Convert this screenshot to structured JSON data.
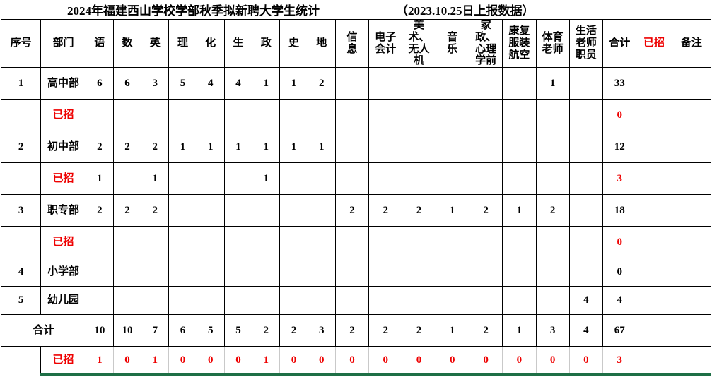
{
  "title": {
    "main": "2024年福建西山学校学部秋季拟新聘大学生统计",
    "date_note": "（2023.10.25日上报数据）"
  },
  "colors": {
    "text": "#000000",
    "red": "#ee0000",
    "grid": "#000000",
    "grid_light": "#c9c9c9",
    "bottom_line_green": "#1e6f46",
    "background": "#ffffff"
  },
  "table": {
    "columns": [
      {
        "label": "序号"
      },
      {
        "label": "部门"
      },
      {
        "label": "语"
      },
      {
        "label": "数"
      },
      {
        "label": "英"
      },
      {
        "label": "理"
      },
      {
        "label": "化"
      },
      {
        "label": "生"
      },
      {
        "label": "政"
      },
      {
        "label": "史"
      },
      {
        "label": "地"
      },
      {
        "label": "信息"
      },
      {
        "label": "电子会计"
      },
      {
        "label": "美术、无人机"
      },
      {
        "label": "音乐"
      },
      {
        "label": "家政、心理学前"
      },
      {
        "label": "康复服装航空"
      },
      {
        "label": "体育老师"
      },
      {
        "label": "生活老师职员"
      },
      {
        "label": "合计"
      },
      {
        "label": "已招",
        "red": true
      },
      {
        "label": "备注"
      }
    ],
    "rows": [
      {
        "kind": "plan",
        "cells": [
          "1",
          "高中部",
          "6",
          "6",
          "3",
          "5",
          "4",
          "4",
          "1",
          "1",
          "2",
          "",
          "",
          "",
          "",
          "",
          "",
          "1",
          "",
          "33",
          "",
          ""
        ]
      },
      {
        "kind": "recruited",
        "cells": [
          "",
          {
            "t": "已招",
            "red": true
          },
          "",
          "",
          "",
          "",
          "",
          "",
          "",
          "",
          "",
          "",
          "",
          "",
          "",
          "",
          "",
          "",
          "",
          {
            "t": "0",
            "red": true
          },
          "",
          ""
        ]
      },
      {
        "kind": "plan",
        "cells": [
          "2",
          "初中部",
          "2",
          "2",
          "2",
          "1",
          "1",
          "1",
          "1",
          "1",
          "1",
          "",
          "",
          "",
          "",
          "",
          "",
          "",
          "",
          "12",
          "",
          ""
        ]
      },
      {
        "kind": "recruited",
        "cells": [
          "",
          {
            "t": "已招",
            "red": true
          },
          "1",
          "",
          "1",
          "",
          "",
          "",
          "1",
          "",
          "",
          "",
          "",
          "",
          "",
          "",
          "",
          "",
          "",
          {
            "t": "3",
            "red": true
          },
          "",
          ""
        ]
      },
      {
        "kind": "plan",
        "cells": [
          "3",
          "职专部",
          "2",
          "2",
          "2",
          "",
          "",
          "",
          "",
          "",
          "",
          "2",
          "2",
          "2",
          "1",
          "2",
          "1",
          "2",
          "",
          "18",
          "",
          ""
        ]
      },
      {
        "kind": "recruited",
        "cells": [
          "",
          {
            "t": "已招",
            "red": true
          },
          "",
          "",
          "",
          "",
          "",
          "",
          "",
          "",
          "",
          "",
          "",
          "",
          "",
          "",
          "",
          "",
          "",
          {
            "t": "0",
            "red": true
          },
          "",
          ""
        ]
      },
      {
        "kind": "plan",
        "cells": [
          "4",
          "小学部",
          "",
          "",
          "",
          "",
          "",
          "",
          "",
          "",
          "",
          "",
          "",
          "",
          "",
          "",
          "",
          "",
          "",
          "0",
          "",
          ""
        ]
      },
      {
        "kind": "plan",
        "cells": [
          "5",
          "幼儿园",
          "",
          "",
          "",
          "",
          "",
          "",
          "",
          "",
          "",
          "",
          "",
          "",
          "",
          "",
          "",
          "",
          "4",
          "4",
          "",
          ""
        ]
      },
      {
        "kind": "total",
        "cells": [
          {
            "t": "合计",
            "span": 2
          },
          "10",
          "10",
          "7",
          "6",
          "5",
          "5",
          "2",
          "2",
          "3",
          "2",
          "2",
          "2",
          "1",
          "2",
          "1",
          "3",
          "4",
          "67",
          "",
          ""
        ]
      },
      {
        "kind": "grand-recruited",
        "cells": [
          "",
          {
            "t": "已招",
            "red": true
          },
          {
            "t": "1",
            "red": true
          },
          {
            "t": "0",
            "red": true
          },
          {
            "t": "1",
            "red": true
          },
          {
            "t": "0",
            "red": true
          },
          {
            "t": "0",
            "red": true
          },
          {
            "t": "0",
            "red": true
          },
          {
            "t": "1",
            "red": true
          },
          {
            "t": "0",
            "red": true
          },
          {
            "t": "0",
            "red": true
          },
          {
            "t": "0",
            "red": true
          },
          {
            "t": "0",
            "red": true
          },
          {
            "t": "0",
            "red": true
          },
          {
            "t": "0",
            "red": true
          },
          {
            "t": "0",
            "red": true
          },
          {
            "t": "0",
            "red": true
          },
          {
            "t": "0",
            "red": true
          },
          {
            "t": "0",
            "red": true
          },
          {
            "t": "3",
            "red": true
          },
          "",
          ""
        ]
      }
    ]
  }
}
